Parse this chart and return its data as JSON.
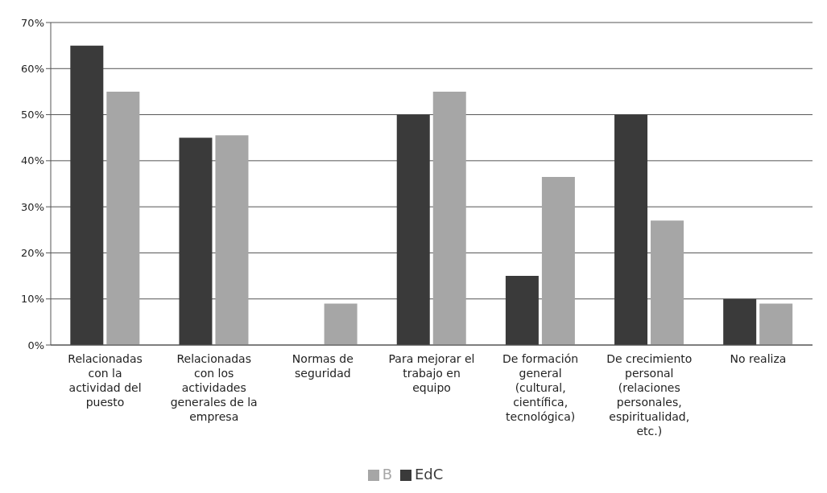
{
  "chart_data": {
    "type": "bar",
    "categories": [
      "Relacionadas con la actividad del puesto",
      "Relacionadas con los actividades generales de la empresa",
      "Normas de seguridad",
      "Para mejorar el trabajo en equipo",
      "De formación general (cultural, científica, tecnológica)",
      "De crecimiento personal (relaciones personales, espiritualidad, etc.)",
      "No realiza"
    ],
    "series": [
      {
        "name": "EdC",
        "color": "#3a3a3a",
        "values": [
          65,
          45,
          0,
          50,
          15,
          50,
          10
        ]
      },
      {
        "name": "B",
        "color": "#a6a6a6",
        "values": [
          55,
          45.5,
          9,
          55,
          36.5,
          27,
          9
        ]
      }
    ],
    "ylim": [
      0,
      70
    ],
    "yticks": [
      {
        "value": 0,
        "label": "0%"
      },
      {
        "value": 10,
        "label": "10%"
      },
      {
        "value": 20,
        "label": "20%"
      },
      {
        "value": 30,
        "label": "30%"
      },
      {
        "value": 40,
        "label": "40%"
      },
      {
        "value": 50,
        "label": "50%"
      },
      {
        "value": 60,
        "label": "60%"
      },
      {
        "value": 70,
        "label": "70%"
      }
    ],
    "grid": "y",
    "legend": "bottom"
  }
}
